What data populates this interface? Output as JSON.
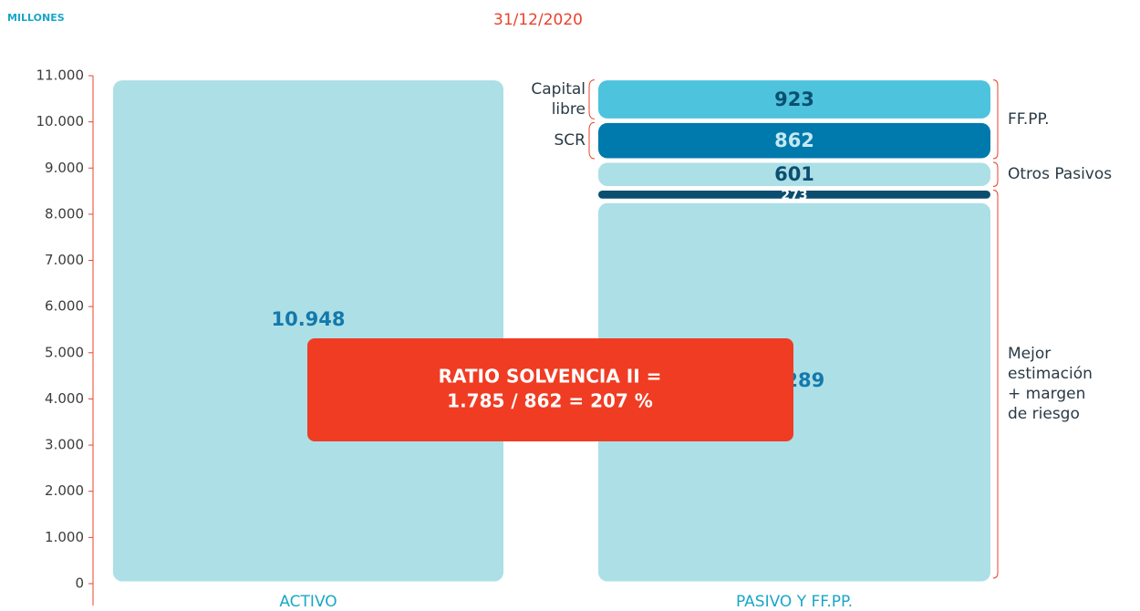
{
  "chart_data": {
    "type": "stacked_bar",
    "unit_label": "MILLONES",
    "title": "31/12/2020",
    "categories": [
      "ACTIVO",
      "PASIVO Y FF.PP."
    ],
    "series": [
      {
        "values": [
          10948,
          8289
        ],
        "value_labels": [
          "10.948",
          "8.289"
        ],
        "color": "#acdfe6",
        "label_color": "#1479ab"
      },
      {
        "values": [
          null,
          273
        ],
        "color": "#0a4d6e",
        "label_color": "#ffffff"
      },
      {
        "values": [
          null,
          601
        ],
        "color": "#acdfe6",
        "label_color": "#0b4f70"
      },
      {
        "values": [
          null,
          862
        ],
        "color": "#0079ad",
        "label_color": "#c4e8f0"
      },
      {
        "values": [
          null,
          923
        ],
        "color": "#4dc3dd",
        "label_color": "#0b4f70"
      }
    ],
    "ylim": [
      0,
      11000
    ],
    "yticks": [
      0,
      {
        "value": 1000,
        "label": "1.000"
      },
      {
        "value": 2000,
        "label": "2.000"
      },
      {
        "value": 3000,
        "label": "3.000"
      },
      {
        "value": 4000,
        "label": "4.000"
      },
      {
        "value": 5000,
        "label": "5.000"
      },
      {
        "value": 6000,
        "label": "6.000"
      },
      {
        "value": 7000,
        "label": "7.000"
      },
      {
        "value": 8000,
        "label": "8.000"
      },
      {
        "value": 9000,
        "label": "9.000"
      },
      {
        "value": 10000,
        "label": "10.000"
      },
      {
        "value": 11000,
        "label": "11.000"
      }
    ],
    "left_brackets": [
      {
        "lines": [
          "Capital",
          "libre"
        ],
        "series": 4
      },
      {
        "lines": [
          "SCR"
        ],
        "series": 3
      }
    ],
    "right_brackets": [
      {
        "lines": [
          "FF.PP."
        ],
        "from": 3,
        "to": 4
      },
      {
        "lines": [
          "Otros Pasivos"
        ],
        "from": 2,
        "to": 2
      },
      {
        "lines": [
          "Mejor",
          "estimación",
          "+ margen",
          "de riesgo"
        ],
        "from": 0,
        "to": 1
      }
    ],
    "ratio_box": {
      "lines": [
        "RATIO SOLVENCIA II =",
        "1.785 / 862 = 207 %"
      ],
      "color": "#f03c23"
    }
  }
}
